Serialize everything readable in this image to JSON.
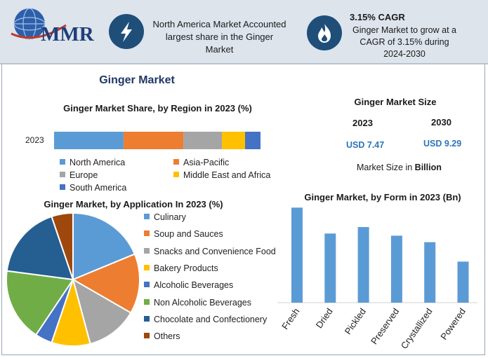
{
  "logo": {
    "brand": "MMR"
  },
  "header": {
    "card1_text": "North America Market Accounted largest share in the Ginger Market",
    "card2_title": "3.15% CAGR",
    "card2_text": "Ginger Market to grow at a CAGR of 3.15% during 2024-2030"
  },
  "main_title": "Ginger Market",
  "market_size": {
    "title": "Ginger Market Size",
    "year1": "2023",
    "year2": "2030",
    "value1": "USD 7.47",
    "value2": "USD 9.29",
    "unit_prefix": "Market Size in ",
    "unit_bold": "Billion"
  },
  "colors": {
    "header_bg": "#dde4ec",
    "icon_circle": "#1f4e79",
    "title_blue": "#1f3864",
    "value_blue": "#2e75b6"
  },
  "chart_data": [
    {
      "type": "bar",
      "orientation": "horizontal-stacked",
      "title": "Ginger Market Share, by Region in 2023 (%)",
      "categories": [
        "2023"
      ],
      "series": [
        {
          "name": "North America",
          "values": [
            36
          ],
          "color": "#5b9bd5"
        },
        {
          "name": "Asia-Pacific",
          "values": [
            31
          ],
          "color": "#ed7d31"
        },
        {
          "name": "Europe",
          "values": [
            20
          ],
          "color": "#a5a5a5"
        },
        {
          "name": "Middle East and Africa",
          "values": [
            12
          ],
          "color": "#ffc000"
        },
        {
          "name": "South America",
          "values": [
            8
          ],
          "color": "#4472c4"
        }
      ],
      "legend": "bottom"
    },
    {
      "type": "pie",
      "title": "Ginger Market, by Application In 2023 (%)",
      "labels": [
        "Culinary",
        "Soup and Sauces",
        "Snacks and Convenience Food",
        "Bakery Products",
        "Alcoholic Beverages",
        "Non Alcoholic Beverages",
        "Chocolate and Confectionery",
        "Others"
      ],
      "values": [
        18,
        14,
        12,
        9,
        4,
        17,
        17,
        5
      ],
      "colors": [
        "#5b9bd5",
        "#ed7d31",
        "#a5a5a5",
        "#ffc000",
        "#4472c4",
        "#70ad47",
        "#255e91",
        "#9e480e"
      ],
      "legend": "right"
    },
    {
      "type": "bar",
      "title": "Ginger Market, by Form in 2023 (Bn)",
      "categories": [
        "Fresh",
        "Dried",
        "Pickled",
        "Preserved",
        "Crystallized",
        "Powered"
      ],
      "values": [
        2.2,
        1.6,
        1.75,
        1.55,
        1.4,
        0.95
      ],
      "ylim": [
        0,
        2.4
      ],
      "color": "#5b9bd5"
    }
  ]
}
